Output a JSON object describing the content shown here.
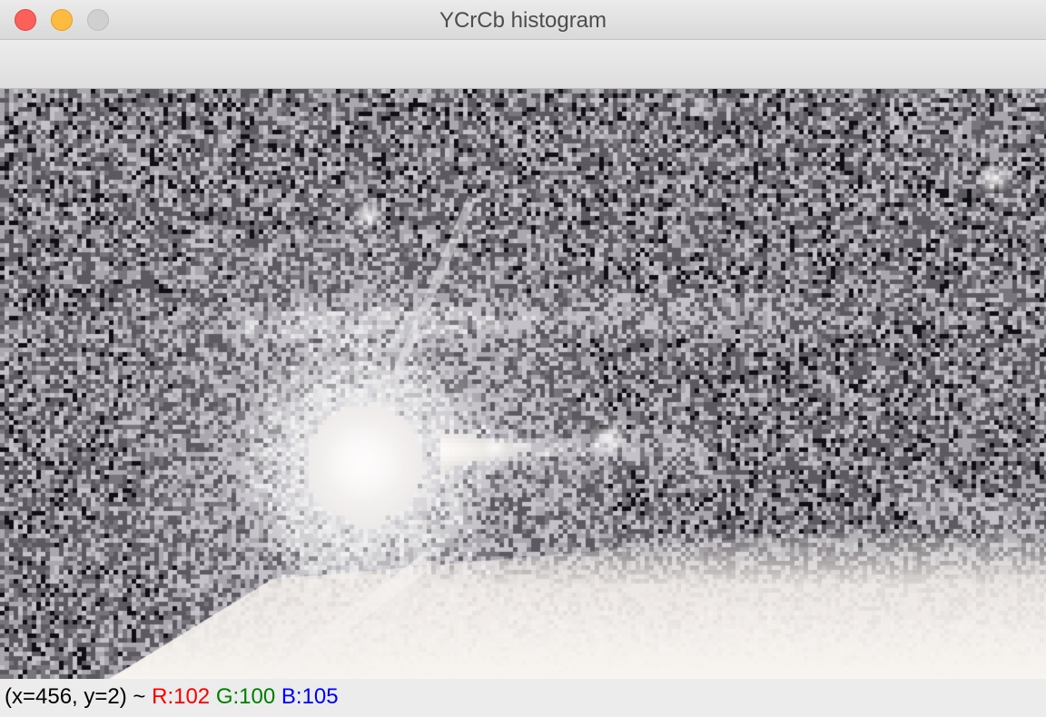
{
  "window": {
    "title": "YCrCb histogram"
  },
  "status": {
    "coords": "(x=456, y=2) ~",
    "r": "R:102",
    "g": "G:100",
    "b": "B:105"
  },
  "colors": {
    "r": "#ff0000",
    "g": "#008000",
    "b": "#0000ff"
  }
}
